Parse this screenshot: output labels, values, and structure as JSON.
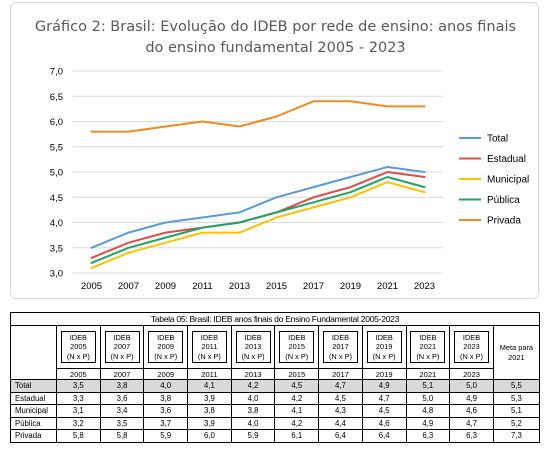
{
  "chart_data": {
    "type": "line",
    "title_line1": "Gráfico 2: Brasil: Evolução do IDEB por rede de ensino: anos finais",
    "title_line2": "do ensino fundamental 2005 - 2023",
    "x": [
      "2005",
      "2007",
      "2009",
      "2011",
      "2013",
      "2015",
      "2017",
      "2019",
      "2021",
      "2023"
    ],
    "ylim": [
      3.0,
      7.0
    ],
    "yticks": [
      "3,0",
      "3,5",
      "4,0",
      "4,5",
      "5,0",
      "5,5",
      "6,0",
      "6,5",
      "7,0"
    ],
    "grid": true,
    "legend_position": "right",
    "series": [
      {
        "name": "Total",
        "color": "#5b9bd5",
        "values": [
          3.5,
          3.8,
          4.0,
          4.1,
          4.2,
          4.5,
          4.7,
          4.9,
          5.1,
          5.0
        ]
      },
      {
        "name": "Estadual",
        "color": "#e04b4b",
        "values": [
          3.3,
          3.6,
          3.8,
          3.9,
          4.0,
          4.2,
          4.5,
          4.7,
          5.0,
          4.9
        ]
      },
      {
        "name": "Municipal",
        "color": "#ffc000",
        "values": [
          3.1,
          3.4,
          3.6,
          3.8,
          3.8,
          4.1,
          4.3,
          4.5,
          4.8,
          4.6
        ]
      },
      {
        "name": "Pública",
        "color": "#21a366",
        "values": [
          3.2,
          3.5,
          3.7,
          3.9,
          4.0,
          4.2,
          4.4,
          4.6,
          4.9,
          4.7
        ]
      },
      {
        "name": "Privada",
        "color": "#f08a24",
        "values": [
          5.8,
          5.8,
          5.9,
          6.0,
          5.9,
          6.1,
          6.4,
          6.4,
          6.3,
          6.3
        ]
      }
    ]
  },
  "table": {
    "caption": "Tabela 05: Brasil: IDEB anos finais do Ensino Fundamental 2005-2023",
    "header_top": "IDEB",
    "header_sub": "(N x P)",
    "years": [
      "2005",
      "2007",
      "2009",
      "2011",
      "2013",
      "2015",
      "2017",
      "2019",
      "2021",
      "2023"
    ],
    "meta_header": "Meta para 2021",
    "rows": [
      {
        "label": "Total",
        "values": [
          "3,5",
          "3,8",
          "4,0",
          "4,1",
          "4,2",
          "4,5",
          "4,7",
          "4,9",
          "5,1",
          "5,0"
        ],
        "meta": "5,5"
      },
      {
        "label": "Estadual",
        "values": [
          "3,3",
          "3,6",
          "3,8",
          "3,9",
          "4,0",
          "4,2",
          "4,5",
          "4,7",
          "5,0",
          "4,9"
        ],
        "meta": "5,3"
      },
      {
        "label": "Municipal",
        "values": [
          "3,1",
          "3,4",
          "3,6",
          "3,8",
          "3,8",
          "4,1",
          "4,3",
          "4,5",
          "4,8",
          "4,6"
        ],
        "meta": "5,1"
      },
      {
        "label": "Pública",
        "values": [
          "3,2",
          "3,5",
          "3,7",
          "3,9",
          "4,0",
          "4,2",
          "4,4",
          "4,6",
          "4,9",
          "4,7"
        ],
        "meta": "5,2"
      },
      {
        "label": "Privada",
        "values": [
          "5,8",
          "5,8",
          "5,9",
          "6,0",
          "5,9",
          "6,1",
          "6,4",
          "6,4",
          "6,3",
          "6,3"
        ],
        "meta": "7,3"
      }
    ]
  }
}
